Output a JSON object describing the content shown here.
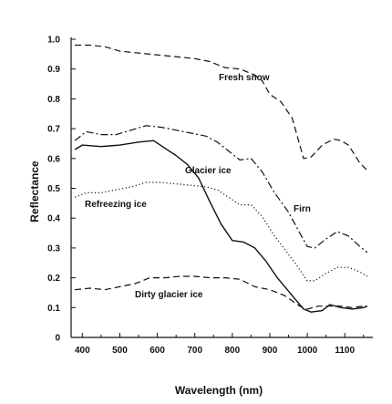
{
  "chart_data": {
    "type": "line",
    "title": "",
    "xlabel": "Wavelength (nm)",
    "ylabel": "Reflectance",
    "xlim": [
      370,
      1170
    ],
    "ylim": [
      0,
      1.0
    ],
    "xticks": [
      "400",
      "500",
      "600",
      "700",
      "800",
      "900",
      "1000",
      "1100"
    ],
    "yticks": [
      "0",
      "0.1",
      "0.2",
      "0.3",
      "0.4",
      "0.5",
      "0.6",
      "0.7",
      "0.8",
      "0.9",
      "1.0"
    ],
    "grid": false,
    "legend": "inline labels",
    "series": [
      {
        "name": "Fresh snow",
        "style": "dashed",
        "points": [
          [
            380,
            0.98
          ],
          [
            420,
            0.98
          ],
          [
            460,
            0.975
          ],
          [
            500,
            0.96
          ],
          [
            540,
            0.955
          ],
          [
            580,
            0.95
          ],
          [
            620,
            0.945
          ],
          [
            660,
            0.94
          ],
          [
            700,
            0.935
          ],
          [
            740,
            0.925
          ],
          [
            780,
            0.905
          ],
          [
            820,
            0.9
          ],
          [
            860,
            0.88
          ],
          [
            880,
            0.86
          ],
          [
            900,
            0.815
          ],
          [
            930,
            0.79
          ],
          [
            960,
            0.735
          ],
          [
            990,
            0.6
          ],
          [
            1010,
            0.605
          ],
          [
            1040,
            0.645
          ],
          [
            1070,
            0.665
          ],
          [
            1090,
            0.66
          ],
          [
            1110,
            0.645
          ],
          [
            1140,
            0.585
          ],
          [
            1160,
            0.56
          ]
        ]
      },
      {
        "name": "Firn",
        "style": "dashdot",
        "points": [
          [
            380,
            0.66
          ],
          [
            410,
            0.69
          ],
          [
            450,
            0.68
          ],
          [
            490,
            0.68
          ],
          [
            530,
            0.695
          ],
          [
            570,
            0.71
          ],
          [
            610,
            0.705
          ],
          [
            650,
            0.695
          ],
          [
            690,
            0.685
          ],
          [
            730,
            0.675
          ],
          [
            760,
            0.655
          ],
          [
            790,
            0.625
          ],
          [
            820,
            0.595
          ],
          [
            850,
            0.6
          ],
          [
            880,
            0.555
          ],
          [
            910,
            0.49
          ],
          [
            950,
            0.42
          ],
          [
            980,
            0.35
          ],
          [
            1000,
            0.305
          ],
          [
            1020,
            0.3
          ],
          [
            1050,
            0.33
          ],
          [
            1080,
            0.355
          ],
          [
            1110,
            0.34
          ],
          [
            1140,
            0.305
          ],
          [
            1160,
            0.285
          ]
        ]
      },
      {
        "name": "Glacier ice",
        "style": "solid",
        "points": [
          [
            380,
            0.63
          ],
          [
            400,
            0.645
          ],
          [
            450,
            0.64
          ],
          [
            500,
            0.645
          ],
          [
            550,
            0.655
          ],
          [
            590,
            0.66
          ],
          [
            620,
            0.635
          ],
          [
            650,
            0.61
          ],
          [
            680,
            0.58
          ],
          [
            710,
            0.535
          ],
          [
            740,
            0.455
          ],
          [
            770,
            0.38
          ],
          [
            800,
            0.325
          ],
          [
            830,
            0.32
          ],
          [
            860,
            0.3
          ],
          [
            890,
            0.255
          ],
          [
            920,
            0.2
          ],
          [
            960,
            0.14
          ],
          [
            990,
            0.095
          ],
          [
            1010,
            0.085
          ],
          [
            1040,
            0.09
          ],
          [
            1060,
            0.11
          ],
          [
            1090,
            0.1
          ],
          [
            1120,
            0.095
          ],
          [
            1150,
            0.1
          ],
          [
            1160,
            0.105
          ]
        ]
      },
      {
        "name": "Refreezing ice",
        "style": "dotted",
        "points": [
          [
            380,
            0.47
          ],
          [
            410,
            0.485
          ],
          [
            450,
            0.485
          ],
          [
            490,
            0.495
          ],
          [
            530,
            0.505
          ],
          [
            570,
            0.52
          ],
          [
            610,
            0.52
          ],
          [
            650,
            0.515
          ],
          [
            690,
            0.51
          ],
          [
            730,
            0.505
          ],
          [
            760,
            0.495
          ],
          [
            790,
            0.47
          ],
          [
            820,
            0.445
          ],
          [
            850,
            0.445
          ],
          [
            880,
            0.405
          ],
          [
            910,
            0.345
          ],
          [
            940,
            0.295
          ],
          [
            970,
            0.245
          ],
          [
            1000,
            0.19
          ],
          [
            1020,
            0.19
          ],
          [
            1050,
            0.215
          ],
          [
            1080,
            0.235
          ],
          [
            1110,
            0.235
          ],
          [
            1140,
            0.22
          ],
          [
            1160,
            0.205
          ]
        ]
      },
      {
        "name": "Dirty glacier ice",
        "style": "dashed",
        "points": [
          [
            380,
            0.16
          ],
          [
            420,
            0.165
          ],
          [
            460,
            0.16
          ],
          [
            500,
            0.17
          ],
          [
            540,
            0.18
          ],
          [
            580,
            0.2
          ],
          [
            620,
            0.2
          ],
          [
            660,
            0.205
          ],
          [
            700,
            0.205
          ],
          [
            740,
            0.2
          ],
          [
            780,
            0.2
          ],
          [
            820,
            0.195
          ],
          [
            860,
            0.17
          ],
          [
            900,
            0.16
          ],
          [
            940,
            0.14
          ],
          [
            980,
            0.105
          ],
          [
            1000,
            0.095
          ],
          [
            1030,
            0.105
          ],
          [
            1060,
            0.105
          ],
          [
            1090,
            0.105
          ],
          [
            1120,
            0.1
          ],
          [
            1150,
            0.105
          ],
          [
            1160,
            0.105
          ]
        ]
      }
    ]
  }
}
